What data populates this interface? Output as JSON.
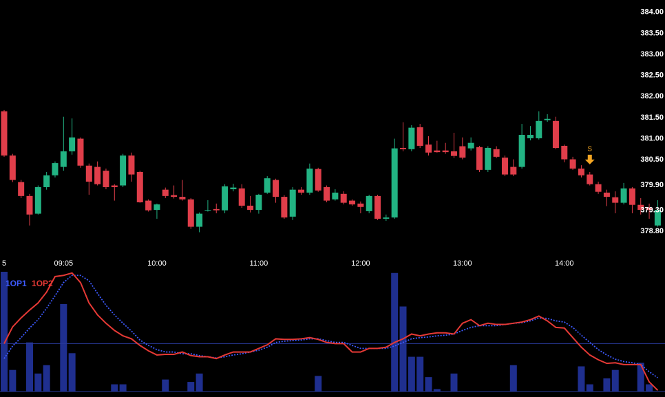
{
  "chart_data": {
    "type": "candlestick",
    "categories": [
      "5",
      null,
      null,
      null,
      null,
      null,
      null,
      "09:05",
      null,
      null,
      null,
      null,
      null,
      null,
      null,
      null,
      null,
      null,
      "10:00",
      null,
      null,
      null,
      null,
      null,
      null,
      null,
      null,
      null,
      null,
      null,
      "11:00",
      null,
      null,
      null,
      null,
      null,
      null,
      null,
      null,
      null,
      null,
      null,
      "12:00",
      null,
      null,
      null,
      null,
      null,
      null,
      null,
      null,
      null,
      null,
      null,
      "13:00",
      null,
      null,
      null,
      null,
      null,
      null,
      null,
      null,
      null,
      null,
      null,
      "14:00",
      null,
      null,
      null,
      null,
      null,
      null,
      null,
      null,
      null,
      null,
      null
    ],
    "ohlc": [
      [
        381.65,
        381.68,
        380.57,
        380.6
      ],
      [
        380.6,
        380.64,
        379.97,
        380.02
      ],
      [
        379.97,
        380.02,
        379.59,
        379.64
      ],
      [
        379.64,
        379.69,
        378.94,
        379.2
      ],
      [
        379.22,
        379.89,
        379.2,
        379.85
      ],
      [
        379.85,
        380.21,
        379.79,
        380.13
      ],
      [
        380.13,
        380.46,
        380.08,
        380.42
      ],
      [
        380.33,
        381.52,
        380.24,
        380.7
      ],
      [
        380.7,
        381.48,
        380.62,
        381.03
      ],
      [
        381.0,
        381.03,
        380.31,
        380.36
      ],
      [
        380.36,
        380.41,
        379.67,
        379.98
      ],
      [
        380.33,
        380.46,
        379.89,
        379.92
      ],
      [
        380.24,
        380.29,
        379.8,
        379.85
      ],
      [
        379.89,
        379.92,
        379.53,
        379.85
      ],
      [
        379.89,
        380.64,
        379.85,
        380.6
      ],
      [
        380.6,
        380.67,
        379.98,
        380.15
      ],
      [
        380.21,
        380.24,
        379.48,
        379.49
      ],
      [
        379.53,
        379.56,
        379.27,
        379.3
      ],
      [
        379.31,
        379.46,
        379.1,
        379.44
      ],
      [
        379.79,
        379.84,
        379.59,
        379.64
      ],
      [
        379.66,
        379.89,
        379.58,
        379.62
      ],
      [
        379.62,
        380.02,
        379.53,
        379.56
      ],
      [
        379.56,
        379.59,
        378.86,
        378.91
      ],
      [
        378.91,
        379.25,
        378.78,
        379.22
      ],
      [
        379.3,
        379.54,
        379.27,
        379.31
      ],
      [
        379.33,
        379.46,
        379.23,
        379.3
      ],
      [
        379.3,
        379.92,
        379.23,
        379.87
      ],
      [
        379.8,
        379.93,
        379.75,
        379.84
      ],
      [
        379.82,
        379.92,
        379.36,
        379.41
      ],
      [
        379.41,
        379.64,
        379.25,
        379.31
      ],
      [
        379.31,
        379.69,
        379.22,
        379.67
      ],
      [
        379.72,
        380.11,
        379.69,
        380.06
      ],
      [
        380.02,
        380.05,
        379.48,
        379.62
      ],
      [
        379.62,
        379.66,
        379.1,
        379.13
      ],
      [
        379.15,
        379.85,
        379.07,
        379.79
      ],
      [
        379.79,
        379.85,
        379.67,
        379.72
      ],
      [
        379.72,
        380.41,
        379.67,
        380.29
      ],
      [
        380.28,
        380.31,
        379.74,
        379.77
      ],
      [
        379.85,
        379.89,
        379.49,
        379.53
      ],
      [
        379.56,
        379.8,
        379.53,
        379.72
      ],
      [
        379.69,
        379.75,
        379.44,
        379.48
      ],
      [
        379.53,
        379.56,
        379.41,
        379.44
      ],
      [
        379.46,
        379.51,
        379.23,
        379.38
      ],
      [
        379.28,
        379.67,
        379.23,
        379.64
      ],
      [
        379.64,
        379.67,
        379.07,
        379.1
      ],
      [
        379.1,
        379.2,
        379.05,
        379.13
      ],
      [
        379.13,
        381.0,
        379.1,
        380.77
      ],
      [
        380.78,
        381.39,
        380.7,
        380.75
      ],
      [
        380.75,
        381.32,
        380.7,
        381.26
      ],
      [
        381.27,
        381.35,
        380.78,
        380.83
      ],
      [
        380.86,
        381.06,
        380.6,
        380.67
      ],
      [
        380.72,
        380.95,
        380.67,
        380.68
      ],
      [
        380.72,
        380.9,
        380.64,
        380.68
      ],
      [
        380.7,
        381.14,
        380.54,
        380.59
      ],
      [
        380.82,
        381.03,
        380.51,
        380.55
      ],
      [
        380.77,
        381.03,
        380.72,
        380.9
      ],
      [
        380.8,
        380.83,
        380.21,
        380.26
      ],
      [
        380.26,
        380.82,
        380.21,
        380.78
      ],
      [
        380.75,
        380.82,
        380.54,
        380.57
      ],
      [
        380.55,
        380.6,
        380.11,
        380.15
      ],
      [
        380.33,
        380.51,
        380.11,
        380.15
      ],
      [
        380.33,
        381.35,
        380.29,
        381.09
      ],
      [
        381.01,
        381.3,
        380.96,
        381.09
      ],
      [
        381.01,
        381.65,
        380.98,
        381.42
      ],
      [
        381.44,
        381.58,
        381.4,
        381.47
      ],
      [
        381.42,
        381.52,
        380.75,
        380.78
      ],
      [
        380.83,
        380.86,
        380.44,
        380.51
      ],
      [
        380.51,
        380.57,
        380.26,
        380.29
      ],
      [
        380.29,
        380.37,
        380.08,
        380.13
      ],
      [
        380.15,
        380.21,
        379.89,
        379.92
      ],
      [
        379.92,
        379.98,
        379.69,
        379.74
      ],
      [
        379.72,
        379.79,
        379.4,
        379.62
      ],
      [
        379.61,
        379.75,
        379.23,
        379.48
      ],
      [
        379.48,
        379.95,
        379.44,
        379.82
      ],
      [
        379.82,
        379.85,
        379.23,
        379.43
      ],
      [
        379.43,
        379.59,
        379.2,
        379.31
      ],
      [
        379.36,
        379.46,
        379.1,
        379.31
      ],
      [
        378.94,
        379.54,
        378.91,
        379.31
      ]
    ],
    "up_color": "#22b383",
    "down_color": "#e03e4a",
    "ylim": [
      378.25,
      384.29
    ],
    "yticks": [
      {
        "value": 384.0,
        "label": "384.00"
      },
      {
        "value": 383.5,
        "label": "383.50"
      },
      {
        "value": 383.0,
        "label": "383.00"
      },
      {
        "value": 382.5,
        "label": "382.50"
      },
      {
        "value": 382.0,
        "label": "382.00"
      },
      {
        "value": 381.5,
        "label": "381.50"
      },
      {
        "value": 381.0,
        "label": "381.00"
      },
      {
        "value": 380.5,
        "label": "380.50"
      },
      {
        "value": 379.9,
        "label": "379.90"
      },
      {
        "value": 379.3,
        "label": "379.30"
      },
      {
        "value": 378.8,
        "label": "378.80"
      }
    ],
    "grid": false,
    "annotations": [
      {
        "text": "S",
        "index": 69,
        "color": "#f5a623"
      }
    ],
    "indicator": {
      "ylim": [
        0,
        100
      ],
      "hline": 40,
      "volume": {
        "color": "#1f2f8f",
        "values": [
          100,
          18,
          0,
          41,
          15,
          22,
          0,
          73,
          32,
          0,
          0,
          0,
          0,
          6,
          6,
          0,
          0,
          0,
          0,
          10,
          0,
          0,
          8,
          15,
          0,
          0,
          0,
          0,
          0,
          0,
          0,
          0,
          0,
          0,
          0,
          0,
          0,
          13,
          0,
          0,
          0,
          0,
          0,
          0,
          0,
          0,
          99,
          71,
          29,
          29,
          12,
          2,
          0,
          15,
          0,
          0,
          0,
          0,
          0,
          0,
          22,
          0,
          0,
          0,
          0,
          0,
          0,
          0,
          21,
          6,
          0,
          11,
          18,
          0,
          0,
          24,
          6,
          0
        ]
      },
      "series": [
        {
          "name": "1OP1",
          "color": "#3d5afe",
          "style": "dotted",
          "values": [
            27.5,
            38,
            45,
            53,
            60,
            69.5,
            80,
            91,
            97,
            97,
            92.5,
            82,
            72,
            64,
            57,
            50.5,
            43,
            38.5,
            35,
            33,
            33,
            31.5,
            31.5,
            30,
            29,
            28,
            29,
            30.5,
            31.5,
            33,
            34.5,
            37,
            41,
            42,
            42.5,
            43,
            44,
            44,
            42.5,
            41,
            41,
            38.5,
            36,
            36,
            36,
            36,
            38,
            41,
            44,
            45,
            45.5,
            46.5,
            47,
            48,
            51,
            53.5,
            55,
            55,
            55,
            56,
            57,
            57.5,
            59,
            61.5,
            61,
            59,
            58,
            53.5,
            47,
            41,
            35,
            30.5,
            27,
            25,
            24,
            22.5,
            16.5,
            11.5
          ]
        },
        {
          "name": "1OP2",
          "color": "#e53935",
          "style": "solid",
          "values": [
            40,
            54,
            61.5,
            68,
            74,
            83,
            96,
            97,
            99,
            91,
            74,
            64,
            57,
            51,
            46.5,
            44,
            38.5,
            34,
            30.5,
            31,
            31,
            33,
            30,
            29,
            29,
            27.5,
            30.5,
            33,
            33,
            33,
            36,
            39,
            44,
            43.5,
            43.5,
            44,
            45,
            43.5,
            41,
            40,
            40,
            33,
            33,
            36,
            36,
            37,
            41,
            44,
            48,
            46.5,
            48,
            49,
            49,
            48,
            57,
            60,
            55,
            57,
            56,
            56,
            57,
            58,
            60,
            63,
            59,
            53.5,
            53,
            45,
            37,
            30.5,
            26.5,
            23.5,
            24,
            22.5,
            22.5,
            22.5,
            8,
            1
          ]
        }
      ]
    }
  }
}
